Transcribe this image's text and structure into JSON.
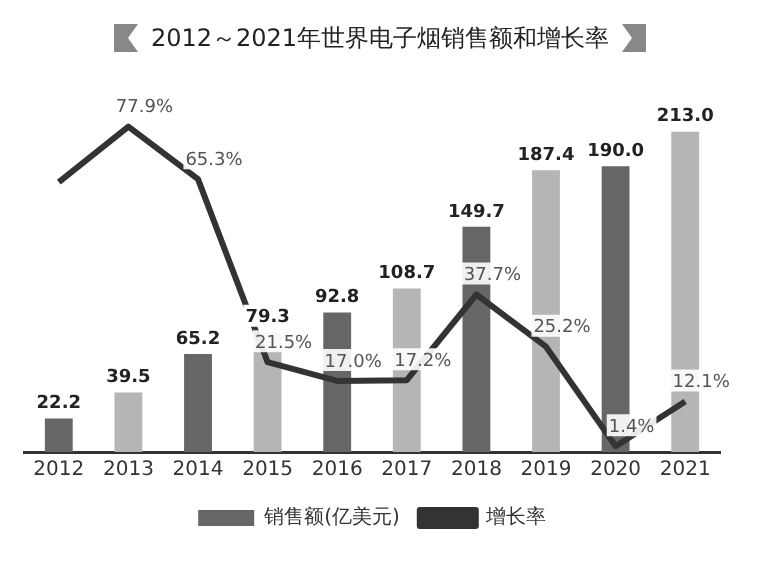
{
  "chart_data": {
    "type": "bar",
    "title": "2012～2021年世界电子烟销售额和增长率",
    "categories": [
      "2012",
      "2013",
      "2014",
      "2015",
      "2016",
      "2017",
      "2018",
      "2019",
      "2020",
      "2021"
    ],
    "series": [
      {
        "name": "销售额(亿美元)",
        "type": "bar",
        "colors": [
          "#666666",
          "#b5b5b5",
          "#666666",
          "#b5b5b5",
          "#666666",
          "#b5b5b5",
          "#666666",
          "#b5b5b5",
          "#666666",
          "#b5b5b5"
        ],
        "values": [
          22.2,
          39.5,
          65.2,
          79.3,
          92.8,
          108.7,
          149.7,
          187.4,
          190.0,
          213.0
        ],
        "value_labels": [
          "22.2",
          "39.5",
          "65.2",
          "79.3",
          "92.8",
          "108.7",
          "149.7",
          "187.4",
          "190.0",
          "213.0"
        ]
      },
      {
        "name": "增长率",
        "type": "line",
        "axis": "y2",
        "color": "#333333",
        "values": [
          64.6,
          77.9,
          65.3,
          21.5,
          17.0,
          17.2,
          37.7,
          25.2,
          1.4,
          12.1
        ],
        "value_labels": [
          null,
          "77.9%",
          "65.3%",
          "21.5%",
          "17.0%",
          "17.2%",
          "37.7%",
          "25.2%",
          "1.4%",
          "12.1%"
        ]
      }
    ],
    "tick_labels": "x",
    "grid": false,
    "legend": "bottom",
    "marker": "none",
    "line_style": "solid"
  }
}
